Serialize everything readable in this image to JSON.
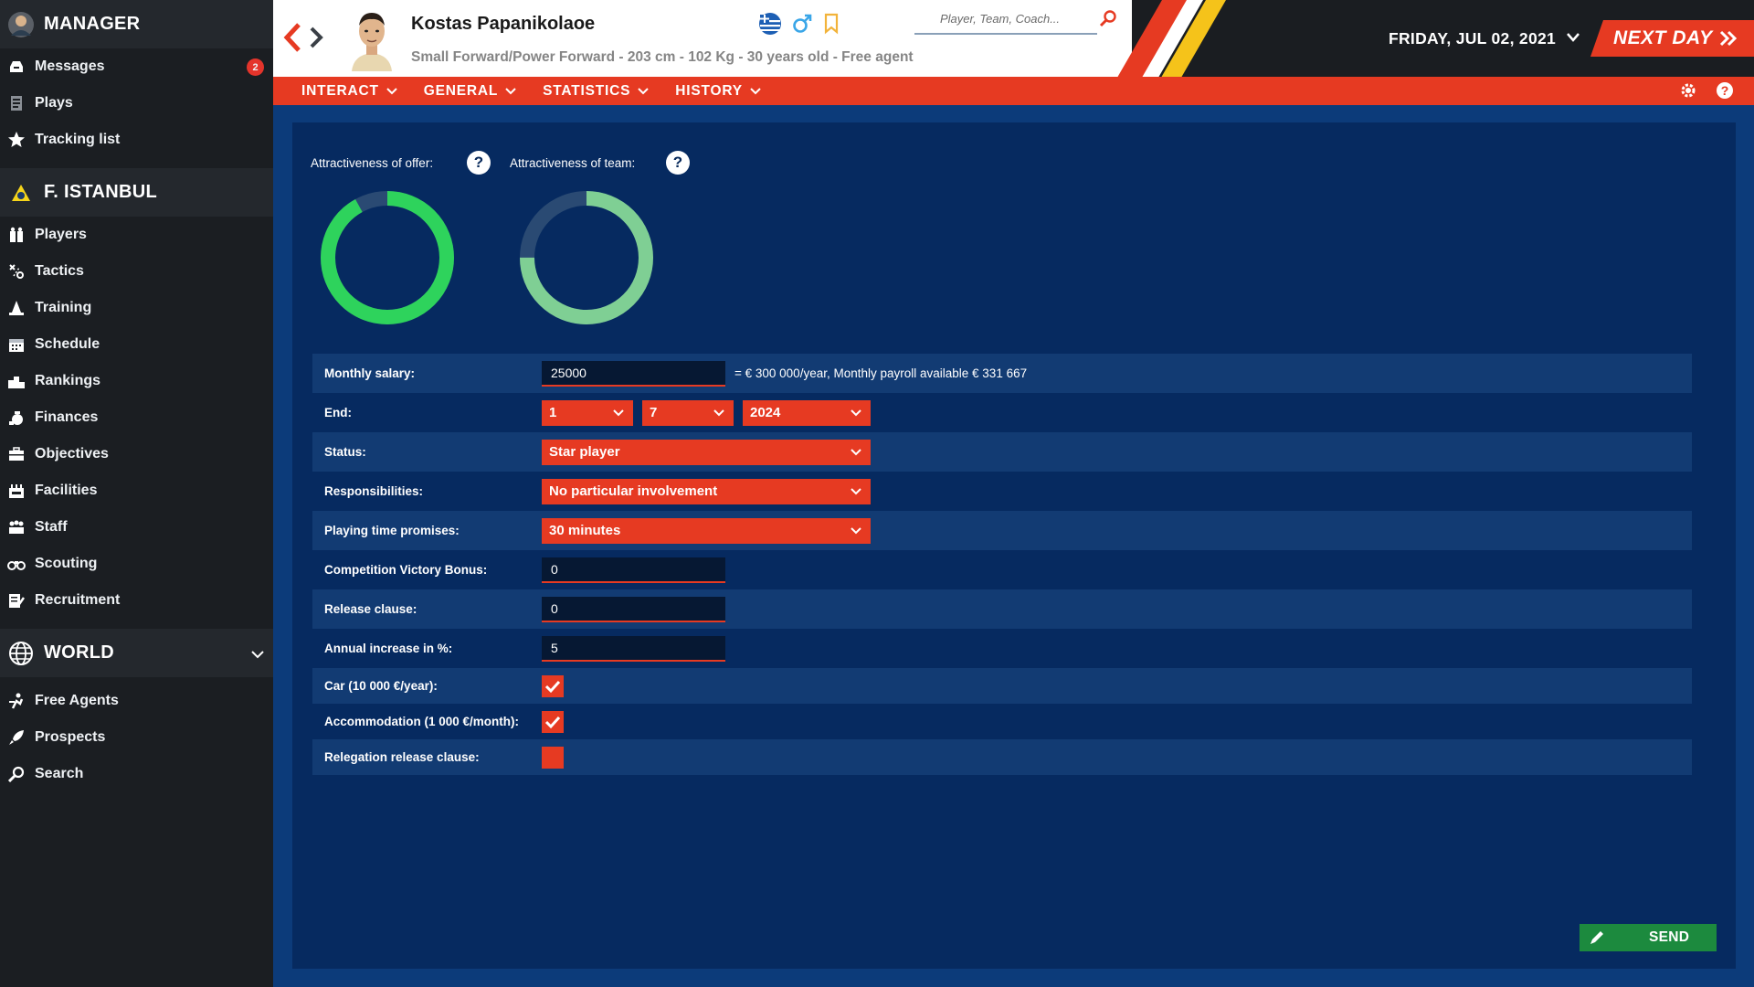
{
  "sidebar": {
    "manager": "MANAGER",
    "manager_items": [
      {
        "label": "Messages",
        "badge": "2"
      },
      {
        "label": "Plays"
      },
      {
        "label": "Tracking list"
      }
    ],
    "team": "F. ISTANBUL",
    "team_items": [
      "Players",
      "Tactics",
      "Training",
      "Schedule",
      "Rankings",
      "Finances",
      "Objectives",
      "Facilities",
      "Staff",
      "Scouting",
      "Recruitment"
    ],
    "world": "WORLD",
    "world_items": [
      "Free Agents",
      "Prospects",
      "Search"
    ]
  },
  "header": {
    "player_name": "Kostas Papanikolaoe",
    "player_info": "Small Forward/Power Forward - 203 cm - 102 Kg - 30 years old - Free agent",
    "search_placeholder": "Player, Team, Coach...",
    "date": "FRIDAY, JUL 02, 2021",
    "next_day": "NEXT DAY"
  },
  "tabs": [
    "INTERACT",
    "GENERAL",
    "STATISTICS",
    "HISTORY"
  ],
  "attractiveness": {
    "offer_label": "Attractiveness of offer:",
    "team_label": "Attractiveness of team:",
    "offer_level": 0.92,
    "team_level": 0.75
  },
  "form": {
    "monthly_salary": {
      "label": "Monthly salary:",
      "value": "25000",
      "note": "= € 300 000/year, Monthly payroll available € 331 667"
    },
    "end": {
      "label": "End:",
      "day": "1",
      "month": "7",
      "year": "2024"
    },
    "status": {
      "label": "Status:",
      "value": "Star player"
    },
    "responsibilities": {
      "label": "Responsibilities:",
      "value": "No particular involvement"
    },
    "playing_time": {
      "label": "Playing time promises:",
      "value": "30 minutes"
    },
    "victory_bonus": {
      "label": "Competition Victory Bonus:",
      "value": "0"
    },
    "release_clause": {
      "label": "Release clause:",
      "value": "0"
    },
    "annual_increase": {
      "label": "Annual increase in %:",
      "value": "5"
    },
    "car": {
      "label": "Car (10 000 €/year):",
      "checked": true
    },
    "accommodation": {
      "label": "Accommodation (1 000 €/month):",
      "checked": true
    },
    "relegation": {
      "label": "Relegation release clause:",
      "checked": false
    }
  },
  "send_label": "SEND",
  "colors": {
    "accent": "#e63a22",
    "offer_ring": "#2ed35c",
    "team_ring": "#7fcf94",
    "panel": "#062a60",
    "send": "#1c8a3e"
  }
}
